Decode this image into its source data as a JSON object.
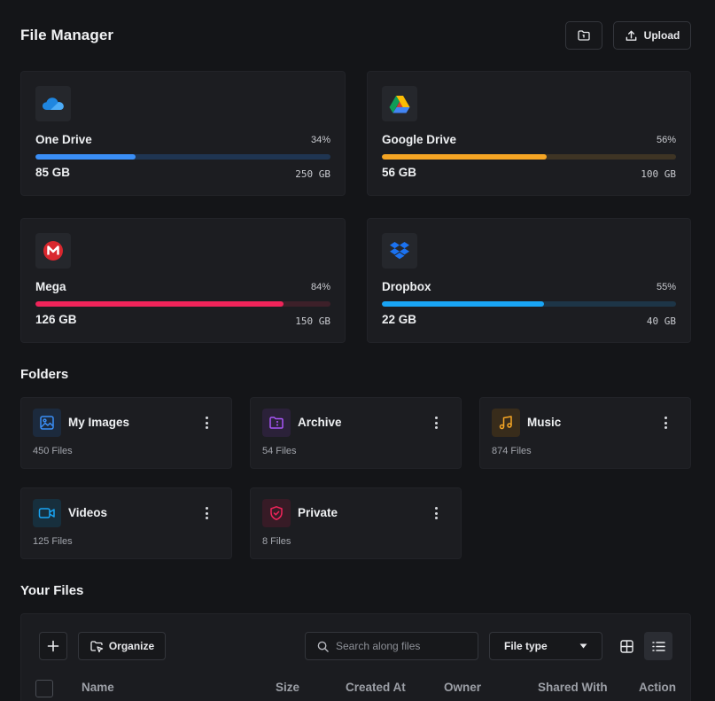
{
  "header": {
    "title": "File Manager",
    "upload_label": "Upload"
  },
  "drives": [
    {
      "name": "One Drive",
      "percent": 34,
      "percent_label": "34%",
      "used": "85 GB",
      "total": "250 GB",
      "color": "#3a8ef6",
      "track": "#1f3552",
      "icon": "onedrive-icon"
    },
    {
      "name": "Google Drive",
      "percent": 56,
      "percent_label": "56%",
      "used": "56 GB",
      "total": "100 GB",
      "color": "#f5a524",
      "track": "#3e3424",
      "icon": "google-drive-icon"
    },
    {
      "name": "Mega",
      "percent": 84,
      "percent_label": "84%",
      "used": "126 GB",
      "total": "150 GB",
      "color": "#f0245a",
      "track": "#3d2029",
      "icon": "mega-icon"
    },
    {
      "name": "Dropbox",
      "percent": 55,
      "percent_label": "55%",
      "used": "22 GB",
      "total": "40 GB",
      "color": "#19a5f5",
      "track": "#1d3547",
      "icon": "dropbox-icon"
    }
  ],
  "folders_title": "Folders",
  "folders": [
    {
      "name": "My Images",
      "count": "450 Files",
      "color": "#3a8ef6",
      "icon": "image-icon"
    },
    {
      "name": "Archive",
      "count": "54 Files",
      "color": "#a855f7",
      "icon": "archive-folder-icon"
    },
    {
      "name": "Music",
      "count": "874 Files",
      "color": "#f5a524",
      "icon": "music-icon"
    },
    {
      "name": "Videos",
      "count": "125 Files",
      "color": "#19a5f5",
      "icon": "video-icon"
    },
    {
      "name": "Private",
      "count": "8 Files",
      "color": "#f0245a",
      "icon": "shield-icon"
    }
  ],
  "files": {
    "title": "Your Files",
    "organize_label": "Organize",
    "search_placeholder": "Search along files",
    "file_type_label": "File type",
    "columns": [
      "Name",
      "Size",
      "Created At",
      "Owner",
      "Shared With",
      "Action"
    ]
  }
}
